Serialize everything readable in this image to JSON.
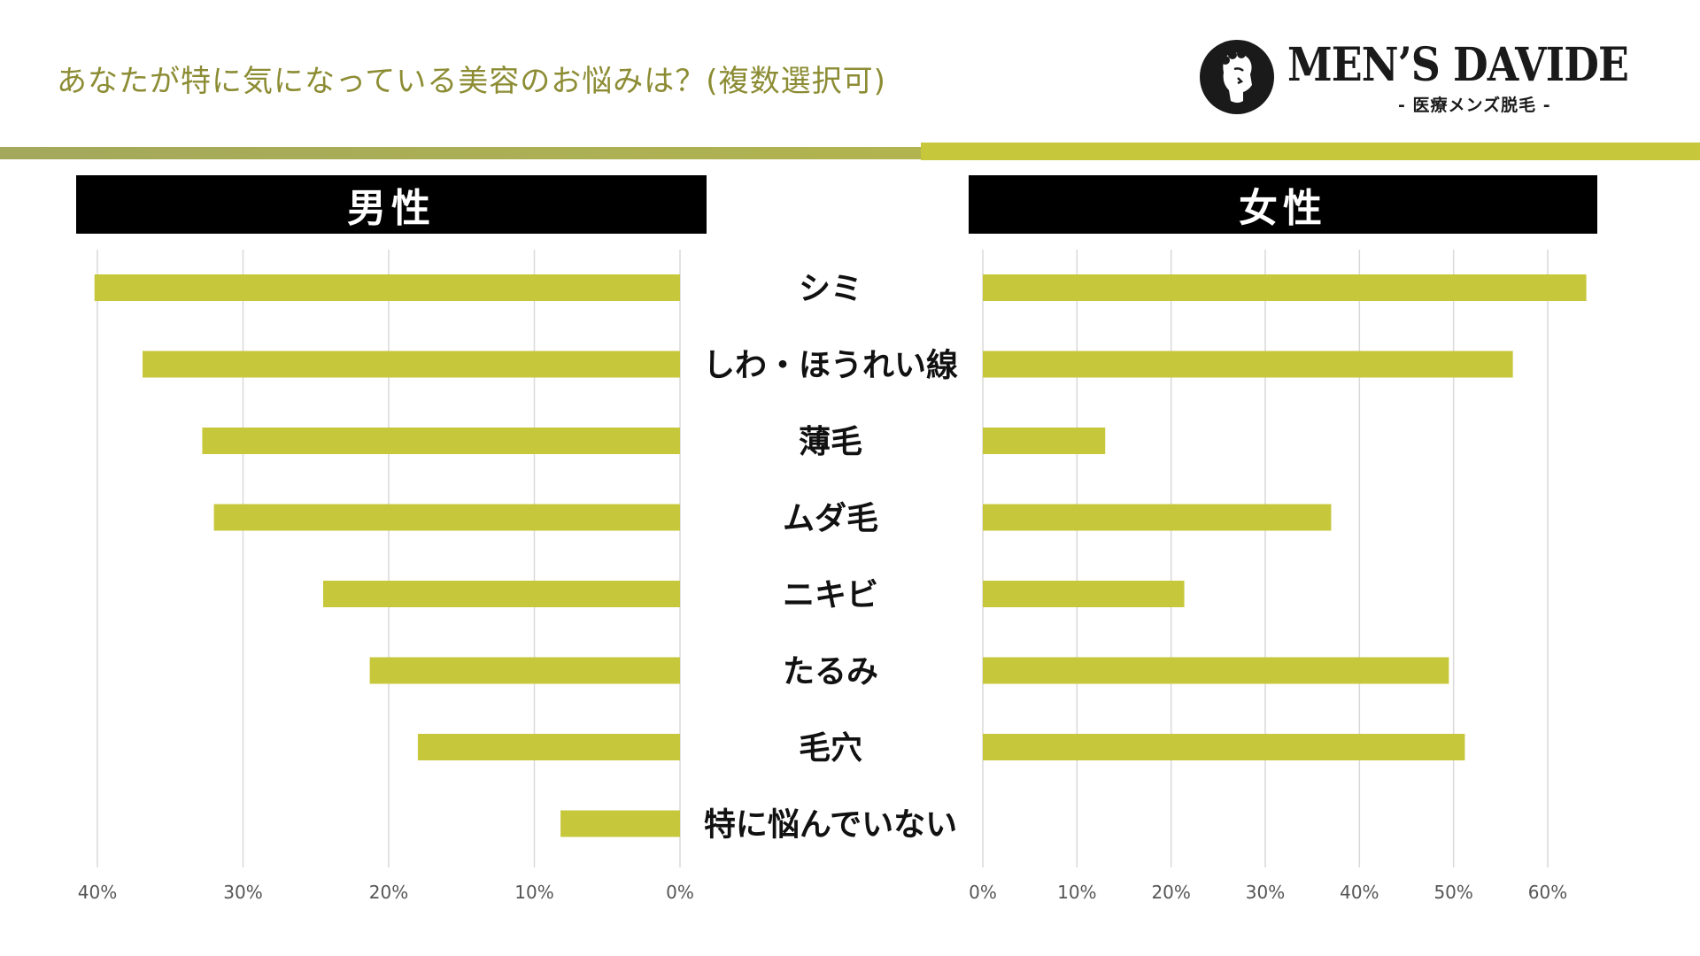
{
  "title": "あなたが特に気になっている美容のお悩みは？(複数選択可)",
  "logo": {
    "name": "MEN’S DAVIDE",
    "subtitle": "- 医療メンズ脱毛 -"
  },
  "colors": {
    "bar": "#c6c73a",
    "title": "#8c8c34",
    "header_bg": "#000000",
    "grid": "#d9d9d9"
  },
  "chart_data": [
    {
      "type": "bar",
      "orientation": "horizontal",
      "title": "男性",
      "direction": "right-to-left",
      "categories": [
        "シミ",
        "しわ・ほうれい線",
        "薄毛",
        "ムダ毛",
        "ニキビ",
        "たるみ",
        "毛穴",
        "特に悩んでいない"
      ],
      "values": [
        40.2,
        36.9,
        32.8,
        32.0,
        24.5,
        21.3,
        18.0,
        8.2
      ],
      "xlim": [
        0,
        40
      ],
      "xticks": [
        40,
        30,
        20,
        10,
        0
      ],
      "xtick_labels": [
        "40%",
        "30%",
        "20%",
        "10%",
        "0%"
      ],
      "grid": true
    },
    {
      "type": "bar",
      "orientation": "horizontal",
      "title": "女性",
      "direction": "left-to-right",
      "categories": [
        "シミ",
        "しわ・ほうれい線",
        "薄毛",
        "ムダ毛",
        "ニキビ",
        "たるみ",
        "毛穴",
        "特に悩んでいない"
      ],
      "values": [
        64.1,
        56.3,
        13.0,
        37.0,
        21.4,
        49.5,
        51.2,
        0
      ],
      "xlim": [
        0,
        60
      ],
      "xticks": [
        0,
        10,
        20,
        30,
        40,
        50,
        60
      ],
      "xtick_labels": [
        "0%",
        "10%",
        "20%",
        "30%",
        "40%",
        "50%",
        "60%"
      ],
      "grid": true
    }
  ]
}
